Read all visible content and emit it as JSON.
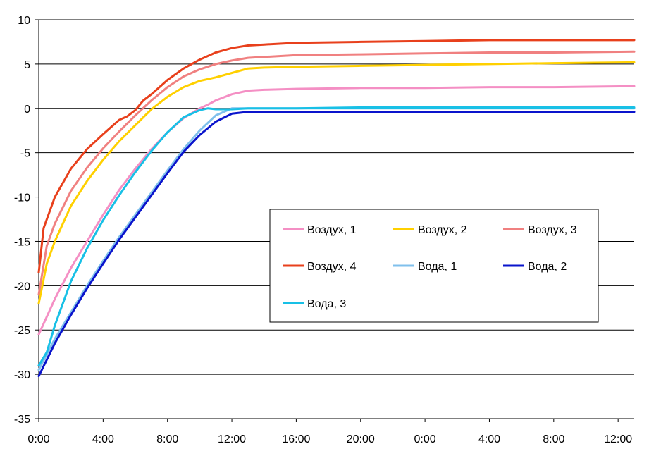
{
  "chart_data": {
    "type": "line",
    "title": "",
    "xlabel": "",
    "ylabel": "",
    "ylim": [
      -35,
      10
    ],
    "y_ticks": [
      "10",
      "5",
      "0",
      "-5",
      "-10",
      "-15",
      "-20",
      "-25",
      "-30",
      "-35"
    ],
    "x_ticks": [
      "0:00",
      "4:00",
      "8:00",
      "12:00",
      "16:00",
      "20:00",
      "0:00",
      "4:00",
      "8:00",
      "12:00"
    ],
    "x_unit": "hours elapsed",
    "xlim": [
      0,
      37
    ],
    "grid": "horizontal",
    "legend_position": "center-right",
    "series": [
      {
        "name": "Воздух, 1",
        "color": "#f48fc4",
        "x": [
          0,
          1,
          2,
          3,
          4,
          5,
          6,
          7,
          8,
          9,
          10,
          10.5,
          11,
          12,
          13,
          14,
          16,
          20,
          24,
          28,
          32,
          37
        ],
        "y": [
          -25.5,
          -21.5,
          -18,
          -15,
          -12,
          -9.2,
          -6.8,
          -4.6,
          -2.7,
          -1.1,
          0.0,
          0.4,
          0.9,
          1.6,
          2.0,
          2.1,
          2.2,
          2.3,
          2.3,
          2.4,
          2.4,
          2.5
        ]
      },
      {
        "name": "Воздух, 2",
        "color": "#ffd000",
        "x": [
          0,
          0.5,
          1,
          2,
          3,
          4,
          5,
          6,
          7,
          8,
          9,
          10,
          11,
          12,
          13,
          14,
          16,
          20,
          24,
          28,
          32,
          37
        ],
        "y": [
          -22,
          -17.5,
          -15,
          -11,
          -8.2,
          -5.8,
          -3.7,
          -1.9,
          -0.1,
          1.3,
          2.4,
          3.1,
          3.5,
          4.0,
          4.5,
          4.6,
          4.7,
          4.8,
          4.9,
          5.0,
          5.1,
          5.2
        ]
      },
      {
        "name": "Воздух, 3",
        "color": "#f08080",
        "x": [
          0,
          0.5,
          1,
          2,
          3,
          4,
          5,
          6,
          7,
          8,
          9,
          10,
          11,
          12,
          13,
          14,
          16,
          20,
          24,
          28,
          32,
          37
        ],
        "y": [
          -21,
          -15.5,
          -13,
          -9.3,
          -6.7,
          -4.5,
          -2.6,
          -0.8,
          0.9,
          2.4,
          3.6,
          4.4,
          5.0,
          5.4,
          5.7,
          5.8,
          6.0,
          6.1,
          6.2,
          6.3,
          6.3,
          6.4
        ]
      },
      {
        "name": "Воздух, 4",
        "color": "#e8401c",
        "x": [
          0,
          0.3,
          1,
          2,
          3,
          4,
          5,
          5.5,
          6,
          6.5,
          7,
          8,
          9,
          10,
          11,
          12,
          13,
          14,
          16,
          20,
          24,
          28,
          32,
          37
        ],
        "y": [
          -18.5,
          -13.5,
          -10,
          -6.8,
          -4.6,
          -2.9,
          -1.3,
          -0.9,
          -0.2,
          0.9,
          1.6,
          3.2,
          4.5,
          5.5,
          6.3,
          6.8,
          7.1,
          7.2,
          7.4,
          7.5,
          7.6,
          7.7,
          7.7,
          7.7
        ]
      },
      {
        "name": "Вода, 1",
        "color": "#80c0ec",
        "x": [
          0,
          1,
          2,
          3,
          4,
          5,
          6,
          7,
          8,
          9,
          10,
          11,
          12,
          13,
          14,
          16,
          20,
          24,
          28,
          32,
          37
        ],
        "y": [
          -29.5,
          -26,
          -23,
          -20,
          -17.2,
          -14.5,
          -12,
          -9.5,
          -7,
          -4.6,
          -2.5,
          -0.8,
          0.0,
          0.0,
          0.0,
          0.0,
          0.0,
          0.0,
          0.0,
          0.0,
          0.0
        ]
      },
      {
        "name": "Вода, 2",
        "color": "#0a14cc",
        "x": [
          0,
          1,
          2,
          3,
          4,
          5,
          6,
          7,
          8,
          9,
          10,
          11,
          12,
          13,
          14,
          16,
          20,
          24,
          28,
          32,
          37
        ],
        "y": [
          -30.2,
          -26.5,
          -23.3,
          -20.3,
          -17.5,
          -14.8,
          -12.3,
          -9.8,
          -7.3,
          -4.9,
          -3.0,
          -1.5,
          -0.6,
          -0.4,
          -0.4,
          -0.4,
          -0.4,
          -0.4,
          -0.4,
          -0.4,
          -0.4
        ]
      },
      {
        "name": "Вода, 3",
        "color": "#18c0e6",
        "x": [
          0,
          0.5,
          1,
          2,
          3,
          4,
          5,
          6,
          7,
          8,
          9,
          10,
          10.5,
          11,
          12,
          13,
          14,
          16,
          20,
          24,
          28,
          32,
          37
        ],
        "y": [
          -29,
          -27.5,
          -24.5,
          -19.5,
          -15.8,
          -12.6,
          -9.8,
          -7.2,
          -4.8,
          -2.7,
          -1.0,
          -0.2,
          0.0,
          -0.1,
          -0.1,
          0.0,
          0.0,
          0.0,
          0.1,
          0.1,
          0.1,
          0.1,
          0.1
        ]
      }
    ]
  }
}
